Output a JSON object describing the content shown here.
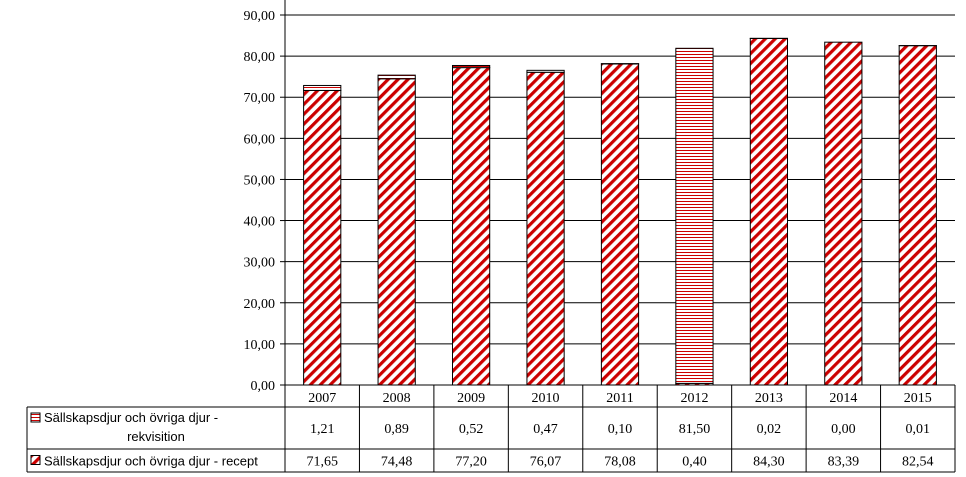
{
  "chart_data": {
    "type": "bar",
    "stacked": true,
    "categories": [
      "2007",
      "2008",
      "2009",
      "2010",
      "2011",
      "2012",
      "2013",
      "2014",
      "2015"
    ],
    "series": [
      {
        "name": "Sällskapsdjur och övriga djur - rekvisition",
        "name_lines": [
          "Sällskapsdjur och övriga djur -",
          "rekvisition"
        ],
        "pattern": "horizontal-stripes",
        "color": "#cc0000",
        "values": [
          1.21,
          0.89,
          0.52,
          0.47,
          0.1,
          81.5,
          0.02,
          0.0,
          0.01
        ],
        "labels": [
          "1,21",
          "0,89",
          "0,52",
          "0,47",
          "0,10",
          "81,50",
          "0,02",
          "0,00",
          "0,01"
        ]
      },
      {
        "name": "Sällskapsdjur och övriga djur - recept",
        "name_lines": [
          "Sällskapsdjur och övriga djur - recept"
        ],
        "pattern": "diagonal-stripes",
        "color": "#cc0000",
        "values": [
          71.65,
          74.48,
          77.2,
          76.07,
          78.08,
          0.4,
          84.3,
          83.39,
          82.54
        ],
        "labels": [
          "71,65",
          "74,48",
          "77,20",
          "76,07",
          "78,08",
          "0,40",
          "84,30",
          "83,39",
          "82,54"
        ]
      }
    ],
    "y_ticks": [
      0,
      10,
      20,
      30,
      40,
      50,
      60,
      70,
      80,
      90
    ],
    "y_tick_labels": [
      "0,00",
      "10,00",
      "20,00",
      "30,00",
      "40,00",
      "50,00",
      "60,00",
      "70,00",
      "80,00",
      "90,00"
    ],
    "ylim": [
      0,
      90
    ],
    "grid": true,
    "data_table": true,
    "title": "",
    "xlabel": "",
    "ylabel": ""
  }
}
